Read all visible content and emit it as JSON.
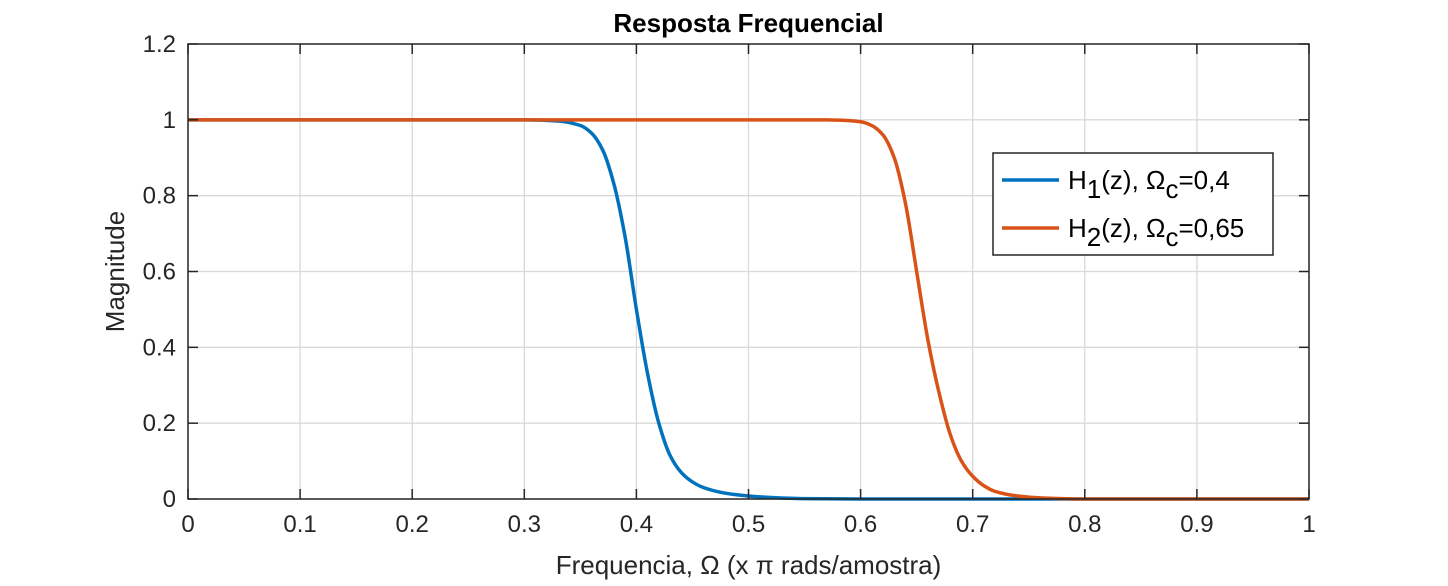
{
  "chart_data": {
    "type": "line",
    "title": "Resposta Frequencial",
    "xlabel": "Frequencia, Ω (x π rads/amostra)",
    "ylabel": "Magnitude",
    "xlim": [
      0,
      1
    ],
    "ylim": [
      0,
      1.2
    ],
    "xticks": [
      0,
      0.1,
      0.2,
      0.3,
      0.4,
      0.5,
      0.6,
      0.7,
      0.8,
      0.9,
      1
    ],
    "xtick_labels": [
      "0",
      "0.1",
      "0.2",
      "0.3",
      "0.4",
      "0.5",
      "0.6",
      "0.7",
      "0.8",
      "0.9",
      "1"
    ],
    "yticks": [
      0,
      0.2,
      0.4,
      0.6,
      0.8,
      1,
      1.2
    ],
    "ytick_labels": [
      "0",
      "0.2",
      "0.4",
      "0.6",
      "0.8",
      "1",
      "1.2"
    ],
    "grid": true,
    "legend_position": "top-right",
    "series": [
      {
        "name": "H1(z), Ωc=0,4",
        "legend": {
          "base": "H",
          "sub1": "1",
          "mid": "(z), Ω",
          "sub2": "c",
          "tail": "=0,4"
        },
        "color": "#0072BD",
        "x": [
          0,
          0.3,
          0.33,
          0.35,
          0.36,
          0.37,
          0.38,
          0.39,
          0.4,
          0.41,
          0.42,
          0.43,
          0.44,
          0.45,
          0.46,
          0.48,
          0.5,
          0.52,
          0.55,
          0.6,
          0.7,
          1.0
        ],
        "y": [
          1,
          1,
          0.997,
          0.985,
          0.965,
          0.92,
          0.83,
          0.69,
          0.5,
          0.33,
          0.2,
          0.115,
          0.07,
          0.045,
          0.03,
          0.015,
          0.008,
          0.004,
          0.001,
          0,
          0,
          0
        ]
      },
      {
        "name": "H2(z), Ωc=0,65",
        "legend": {
          "base": "H",
          "sub1": "2",
          "mid": "(z), Ω",
          "sub2": "c",
          "tail": "=0,65"
        },
        "color": "#D95319",
        "x": [
          0,
          0.57,
          0.59,
          0.6,
          0.61,
          0.62,
          0.63,
          0.64,
          0.65,
          0.66,
          0.67,
          0.68,
          0.69,
          0.7,
          0.71,
          0.72,
          0.74,
          0.76,
          0.78,
          0.8,
          1.0
        ],
        "y": [
          1,
          1,
          0.998,
          0.995,
          0.985,
          0.96,
          0.9,
          0.78,
          0.6,
          0.42,
          0.28,
          0.17,
          0.1,
          0.06,
          0.035,
          0.02,
          0.008,
          0.003,
          0.001,
          0,
          0
        ]
      }
    ]
  }
}
